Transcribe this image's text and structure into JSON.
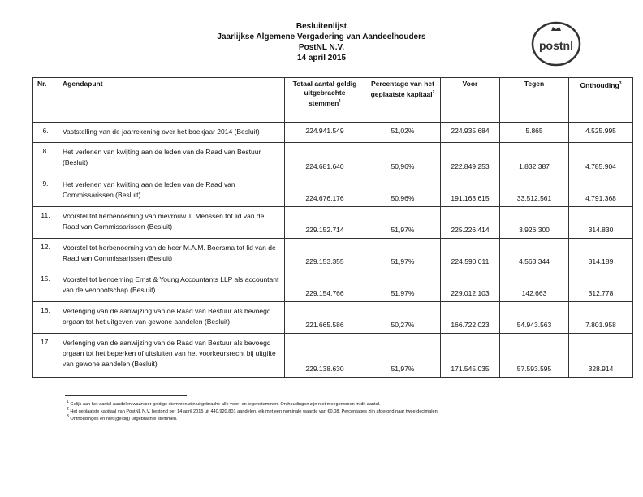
{
  "header": {
    "line1": "Besluitenlijst",
    "line2": "Jaarlijkse Algemene Vergadering van Aandeelhouders",
    "line3": "PostNL N.V.",
    "line4": "14 april 2015"
  },
  "logo": {
    "text": "postnl",
    "color": "#333333"
  },
  "table": {
    "columns": [
      "Nr.",
      "Agendapunt",
      "Totaal aantal geldig uitgebrachte stemmen",
      "Percentage van het geplaatste kapitaal",
      "Voor",
      "Tegen",
      "Onthouding"
    ],
    "column_footnotes": {
      "totaal": "1",
      "percentage": "2",
      "onthouding": "3"
    },
    "rows": [
      {
        "nr": "6.",
        "item": "Vaststelling van de jaarrekening over het boekjaar 2014 (Besluit)",
        "totaal": "224.941.549",
        "pct": "51,02%",
        "voor": "224.935.684",
        "tegen": "5.865",
        "onthouding": "4.525.995"
      },
      {
        "nr": "8.",
        "item": "Het verlenen van kwijting aan de leden van de Raad van Bestuur (Besluit)",
        "totaal": "224.681.640",
        "pct": "50,96%",
        "voor": "222.849.253",
        "tegen": "1.832.387",
        "onthouding": "4.785.904"
      },
      {
        "nr": "9.",
        "item": "Het verlenen van kwijting aan de leden van de Raad van Commissarissen (Besluit)",
        "totaal": "224.676.176",
        "pct": "50,96%",
        "voor": "191.163.615",
        "tegen": "33.512.561",
        "onthouding": "4.791.368"
      },
      {
        "nr": "11.",
        "item": "Voorstel tot herbenoeming van mevrouw T. Menssen tot lid van de Raad van Commissarissen (Besluit)",
        "totaal": "229.152.714",
        "pct": "51,97%",
        "voor": "225.226.414",
        "tegen": "3.926.300",
        "onthouding": "314.830"
      },
      {
        "nr": "12.",
        "item": "Voorstel tot herbenoeming van de heer M.A.M. Boersma tot lid van de Raad van Commissarissen (Besluit)",
        "totaal": "229.153.355",
        "pct": "51,97%",
        "voor": "224.590.011",
        "tegen": "4.563.344",
        "onthouding": "314.189"
      },
      {
        "nr": "15.",
        "item": "Voorstel tot benoeming Ernst & Young Accountants LLP als accountant van de vennootschap (Besluit)",
        "totaal": "229.154.766",
        "pct": "51,97%",
        "voor": "229.012.103",
        "tegen": "142.663",
        "onthouding": "312.778"
      },
      {
        "nr": "16.",
        "item": "Verlenging van de aanwijzing van de Raad van Bestuur als bevoegd orgaan tot het uitgeven van gewone aandelen (Besluit)",
        "totaal": "221.665.586",
        "pct": "50,27%",
        "voor": "166.722.023",
        "tegen": "54.943.563",
        "onthouding": "7.801.958"
      },
      {
        "nr": "17.",
        "item": "Verlenging van de aanwijzing van de Raad van Bestuur als bevoegd orgaan tot het beperken of uitsluiten van het voorkeursrecht bij uitgifte van gewone aandelen (Besluit)",
        "totaal": "229.138.630",
        "pct": "51,97%",
        "voor": "171.545.035",
        "tegen": "57.593.595",
        "onthouding": "328.914"
      }
    ]
  },
  "footnotes": [
    {
      "mark": "1",
      "text": "Gelijk aan het aantal aandelen waarvoor geldige stemmen zijn uitgebracht: alle voor- en tegenstemmen. Onthoudingen zijn niet meegenomen in dit aantal."
    },
    {
      "mark": "2",
      "text": "Het geplaatste kapitaal van PostNL N.V. bestond per 14 april 2015 uit 440.920.801 aandelen, elk met een nominale waarde van €0,08. Percentages zijn afgerond naar twee decimalen"
    },
    {
      "mark": "3",
      "text": "Onthoudingen en niet (geldig) uitgebrachte stemmen."
    }
  ]
}
